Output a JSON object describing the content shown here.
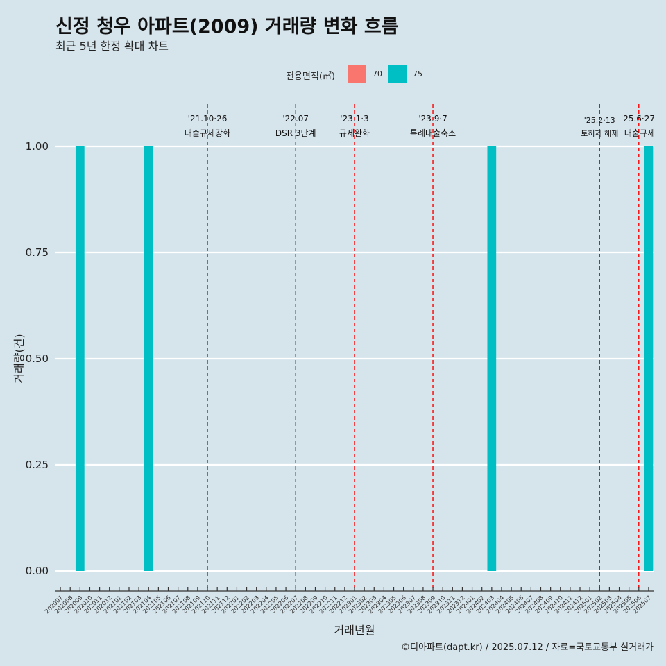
{
  "title": "신정 청우 아파트(2009) 거래량 변화 흐름",
  "subtitle": "최근 5년 한정 확대 차트",
  "caption": "©디아파트(dapt.kr) / 2025.07.12 / 자료=국토교통부 실거래가",
  "legend": {
    "title": "전용면적(㎡)",
    "items": [
      {
        "label": "70",
        "color": "#f8766d"
      },
      {
        "label": "75",
        "color": "#00bfc4"
      }
    ]
  },
  "chart_data": {
    "type": "bar",
    "xlabel": "거래년월",
    "ylabel": "거래량(건)",
    "ylim": [
      0,
      1
    ],
    "yticks": [
      "0.00",
      "0.25",
      "0.50",
      "0.75",
      "1.00"
    ],
    "categories": [
      "202007",
      "202008",
      "202009",
      "202010",
      "202011",
      "202012",
      "202101",
      "202102",
      "202103",
      "202104",
      "202105",
      "202106",
      "202107",
      "202108",
      "202109",
      "202110",
      "202111",
      "202112",
      "202201",
      "202202",
      "202203",
      "202204",
      "202205",
      "202206",
      "202207",
      "202208",
      "202209",
      "202210",
      "202211",
      "202212",
      "202301",
      "202302",
      "202303",
      "202304",
      "202305",
      "202306",
      "202307",
      "202308",
      "202309",
      "202310",
      "202311",
      "202312",
      "202401",
      "202402",
      "202403",
      "202404",
      "202405",
      "202406",
      "202407",
      "202408",
      "202409",
      "202410",
      "202411",
      "202412",
      "202501",
      "202502",
      "202503",
      "202504",
      "202505",
      "202506",
      "202507"
    ],
    "series": [
      {
        "name": "75",
        "color": "#00bfc4",
        "points": [
          {
            "x": "202009",
            "y": 1
          },
          {
            "x": "202104",
            "y": 1
          },
          {
            "x": "202403",
            "y": 1
          },
          {
            "x": "202507",
            "y": 1
          }
        ]
      }
    ],
    "annotations": [
      {
        "x": "202110",
        "date": "'21.10·26",
        "label": "대출규제강화"
      },
      {
        "x": "202207",
        "date": "'22.07",
        "label": "DSR 3단계"
      },
      {
        "x": "202301",
        "date": "'23.1·3",
        "label": "규제완화"
      },
      {
        "x": "202309",
        "date": "'23.9·7",
        "label": "특례대출축소"
      },
      {
        "x": "202502",
        "date": "'25.2·13",
        "label": "토허제 해제"
      },
      {
        "x": "202506",
        "date": "'25.6·27",
        "label": "대출규제"
      }
    ]
  }
}
